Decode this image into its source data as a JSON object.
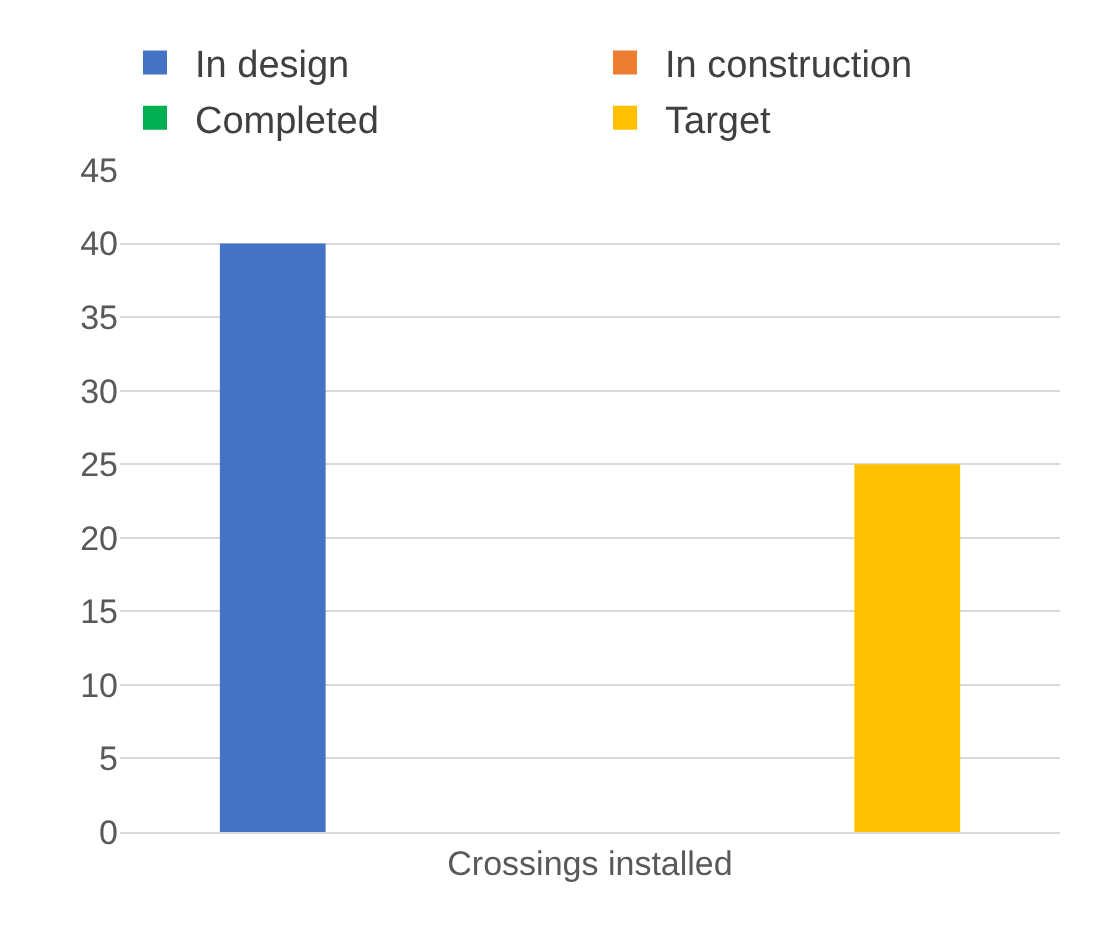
{
  "chart_data": {
    "type": "bar",
    "categories": [
      "Crossings installed"
    ],
    "series": [
      {
        "name": "In design",
        "color": "#4472c4",
        "values": [
          40
        ]
      },
      {
        "name": "In construction",
        "color": "#ed7d31",
        "values": [
          0
        ]
      },
      {
        "name": "Completed",
        "color": "#00b050",
        "values": [
          0
        ]
      },
      {
        "name": "Target",
        "color": "#ffc000",
        "values": [
          25
        ]
      }
    ],
    "ylim": [
      0,
      45
    ],
    "yticks": [
      0,
      5,
      10,
      15,
      20,
      25,
      30,
      35,
      40,
      45
    ],
    "grid": "y",
    "legend": "top"
  }
}
